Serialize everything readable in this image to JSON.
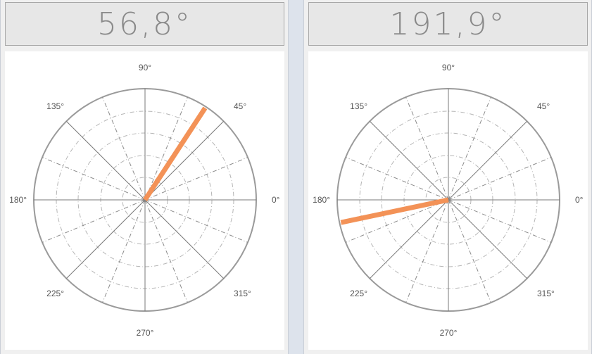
{
  "gauges": [
    {
      "readout": "56,8°",
      "angle_deg": 56.8,
      "labels": {
        "a0": "0°",
        "a45": "45°",
        "a90": "90°",
        "a135": "135°",
        "a180": "180°",
        "a225": "225°",
        "a270": "270°",
        "a315": "315°"
      }
    },
    {
      "readout": "191,9°",
      "angle_deg": 191.9,
      "labels": {
        "a0": "0°",
        "a45": "45°",
        "a90": "90°",
        "a135": "135°",
        "a180": "180°",
        "a225": "225°",
        "a270": "270°",
        "a315": "315°"
      }
    }
  ],
  "colors": {
    "needle": "#f39257",
    "grid": "#8c8c8c",
    "outer": "#9a9a9a"
  }
}
